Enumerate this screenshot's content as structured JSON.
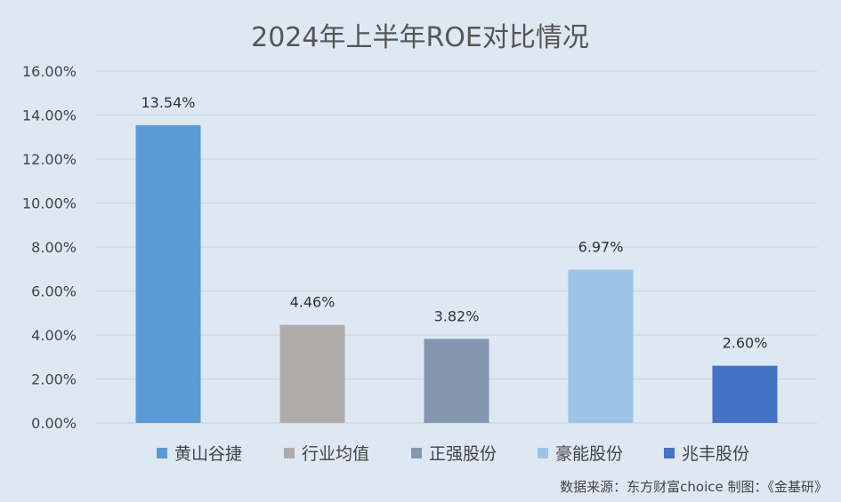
{
  "chart_data": {
    "type": "bar",
    "title": "2024年上半年ROE对比情况",
    "categories": [
      "黄山谷捷",
      "行业均值",
      "正强股份",
      "豪能股份",
      "兆丰股份"
    ],
    "values": [
      13.54,
      4.46,
      3.82,
      6.97,
      2.6
    ],
    "data_labels": [
      "13.54%",
      "4.46%",
      "3.82%",
      "6.97%",
      "2.60%"
    ],
    "colors": [
      "#5b9bd5",
      "#afabab",
      "#8497b0",
      "#9dc3e6",
      "#4472c4"
    ],
    "ylim": [
      0,
      16
    ],
    "yticks": [
      "0.00%",
      "2.00%",
      "4.00%",
      "6.00%",
      "8.00%",
      "10.00%",
      "12.00%",
      "14.00%",
      "16.00%"
    ],
    "grid": true,
    "legend_position": "bottom",
    "xlabel": "",
    "ylabel": ""
  },
  "footer": {
    "source": "数据来源：东方财富choice  制图：《金基研》"
  }
}
